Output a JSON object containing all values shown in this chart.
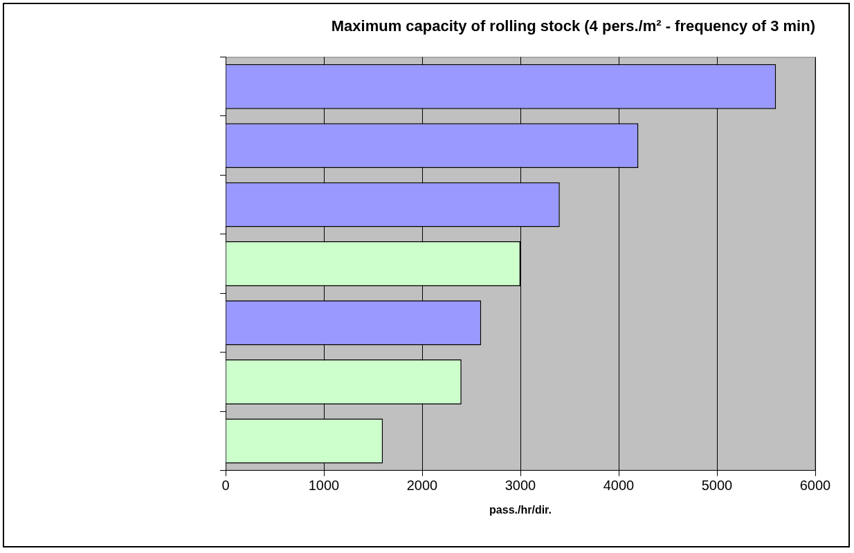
{
  "chart_data": {
    "type": "bar",
    "orientation": "horizontal",
    "title": "Maximum capacity of rolling stock (4 pers./m² - frequency of 3 min)",
    "xlabel": "pass./hr/dir.",
    "categories": [
      null,
      null,
      null,
      null,
      null,
      null,
      null
    ],
    "values": [
      5600,
      4200,
      3400,
      3000,
      2600,
      2400,
      1600
    ],
    "colors": [
      "#9999ff",
      "#9999ff",
      "#9999ff",
      "#ccffcc",
      "#9999ff",
      "#ccffcc",
      "#ccffcc"
    ],
    "xlim": [
      0,
      6000
    ],
    "xticks": [
      0,
      1000,
      2000,
      3000,
      4000,
      5000,
      6000
    ],
    "grid": "x",
    "legend": false
  }
}
